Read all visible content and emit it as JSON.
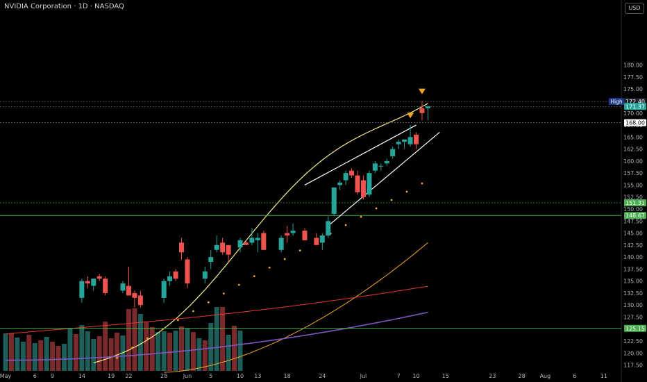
{
  "header": {
    "title": "NVIDIA Corporation · 1D · NASDAQ",
    "currency": "USD"
  },
  "chart_data": {
    "type": "candlestick",
    "ylim": [
      116,
      184
    ],
    "y_ticks": [
      117.5,
      120.0,
      122.5,
      125.0,
      127.5,
      130.0,
      132.5,
      135.0,
      137.5,
      140.0,
      142.5,
      145.0,
      147.5,
      150.0,
      152.5,
      155.0,
      157.5,
      160.0,
      162.5,
      165.0,
      167.5,
      170.0,
      172.5,
      175.0,
      177.5,
      180.0
    ],
    "x_ticks": [
      {
        "label": "May",
        "day": 1
      },
      {
        "label": "6",
        "day": 6
      },
      {
        "label": "9",
        "day": 9
      },
      {
        "label": "14",
        "day": 14
      },
      {
        "label": "19",
        "day": 19
      },
      {
        "label": "22",
        "day": 22
      },
      {
        "label": "28",
        "day": 28
      },
      {
        "label": "Jun",
        "day": 32
      },
      {
        "label": "5",
        "day": 36
      },
      {
        "label": "10",
        "day": 41
      },
      {
        "label": "13",
        "day": 44
      },
      {
        "label": "18",
        "day": 49
      },
      {
        "label": "24",
        "day": 55
      },
      {
        "label": "Jul",
        "day": 62
      },
      {
        "label": "7",
        "day": 68
      },
      {
        "label": "10",
        "day": 71
      },
      {
        "label": "15",
        "day": 76
      },
      {
        "label": "23",
        "day": 84
      },
      {
        "label": "28",
        "day": 89
      },
      {
        "label": "Aug",
        "day": 93
      },
      {
        "label": "6",
        "day": 98
      },
      {
        "label": "11",
        "day": 103
      }
    ],
    "candles": [
      {
        "day": 14,
        "o": 131.5,
        "h": 135.5,
        "l": 130.5,
        "c": 135.0
      },
      {
        "day": 15,
        "o": 135.0,
        "h": 136.0,
        "l": 133.5,
        "c": 134.5
      },
      {
        "day": 16,
        "o": 134.0,
        "h": 135.5,
        "l": 133.0,
        "c": 135.5
      },
      {
        "day": 17,
        "o": 136.0,
        "h": 136.5,
        "l": 135.0,
        "c": 135.5
      },
      {
        "day": 18,
        "o": 135.5,
        "h": 136.0,
        "l": 132.0,
        "c": 132.5
      },
      {
        "day": 21,
        "o": 133.0,
        "h": 135.0,
        "l": 132.5,
        "c": 134.5
      },
      {
        "day": 22,
        "o": 134.0,
        "h": 138.0,
        "l": 132.0,
        "c": 132.0
      },
      {
        "day": 23,
        "o": 132.5,
        "h": 133.0,
        "l": 129.5,
        "c": 131.5
      },
      {
        "day": 24,
        "o": 132.0,
        "h": 133.0,
        "l": 129.5,
        "c": 130.0
      },
      {
        "day": 28,
        "o": 131.5,
        "h": 135.5,
        "l": 130.5,
        "c": 135.0
      },
      {
        "day": 29,
        "o": 135.0,
        "h": 137.0,
        "l": 134.0,
        "c": 136.0
      },
      {
        "day": 30,
        "o": 137.0,
        "h": 137.5,
        "l": 135.0,
        "c": 135.5
      },
      {
        "day": 31,
        "o": 143.0,
        "h": 144.0,
        "l": 139.5,
        "c": 141.0
      },
      {
        "day": 32,
        "o": 139.5,
        "h": 140.0,
        "l": 133.5,
        "c": 134.5
      },
      {
        "day": 35,
        "o": 135.5,
        "h": 138.0,
        "l": 134.5,
        "c": 137.0
      },
      {
        "day": 36,
        "o": 139.0,
        "h": 141.5,
        "l": 137.5,
        "c": 140.0
      },
      {
        "day": 37,
        "o": 141.5,
        "h": 144.5,
        "l": 141.0,
        "c": 142.5
      },
      {
        "day": 38,
        "o": 143.0,
        "h": 144.0,
        "l": 140.5,
        "c": 141.0
      },
      {
        "day": 39,
        "o": 142.5,
        "h": 142.5,
        "l": 139.0,
        "c": 140.5
      },
      {
        "day": 41,
        "o": 142.0,
        "h": 144.0,
        "l": 141.0,
        "c": 143.5
      },
      {
        "day": 42,
        "o": 143.0,
        "h": 143.5,
        "l": 142.5,
        "c": 142.5
      },
      {
        "day": 43,
        "o": 143.0,
        "h": 146.0,
        "l": 142.5,
        "c": 144.0
      },
      {
        "day": 44,
        "o": 143.5,
        "h": 145.0,
        "l": 141.0,
        "c": 144.0
      },
      {
        "day": 45,
        "o": 145.0,
        "h": 145.5,
        "l": 141.5,
        "c": 141.5
      },
      {
        "day": 48,
        "o": 141.5,
        "h": 144.5,
        "l": 141.0,
        "c": 144.0
      },
      {
        "day": 49,
        "o": 145.0,
        "h": 146.5,
        "l": 143.0,
        "c": 144.5
      },
      {
        "day": 50,
        "o": 145.0,
        "h": 147.0,
        "l": 144.5,
        "c": 145.5
      },
      {
        "day": 52,
        "o": 145.5,
        "h": 146.0,
        "l": 143.5,
        "c": 143.5
      },
      {
        "day": 54,
        "o": 144.0,
        "h": 145.0,
        "l": 142.5,
        "c": 142.5
      },
      {
        "day": 55,
        "o": 143.0,
        "h": 145.0,
        "l": 141.5,
        "c": 144.5
      },
      {
        "day": 56,
        "o": 144.5,
        "h": 148.5,
        "l": 144.0,
        "c": 147.5
      },
      {
        "day": 57,
        "o": 149.0,
        "h": 154.5,
        "l": 148.5,
        "c": 154.5
      },
      {
        "day": 58,
        "o": 155.0,
        "h": 156.0,
        "l": 154.0,
        "c": 155.5
      },
      {
        "day": 59,
        "o": 156.0,
        "h": 158.0,
        "l": 155.0,
        "c": 157.5
      },
      {
        "day": 60,
        "o": 158.0,
        "h": 158.5,
        "l": 156.5,
        "c": 157.0
      },
      {
        "day": 61,
        "o": 157.0,
        "h": 158.0,
        "l": 153.0,
        "c": 153.5
      },
      {
        "day": 62,
        "o": 156.0,
        "h": 157.0,
        "l": 152.0,
        "c": 152.5
      },
      {
        "day": 63,
        "o": 153.0,
        "h": 158.0,
        "l": 152.5,
        "c": 157.5
      },
      {
        "day": 64,
        "o": 158.0,
        "h": 160.0,
        "l": 157.5,
        "c": 159.5
      },
      {
        "day": 65,
        "o": 159.0,
        "h": 159.5,
        "l": 158.0,
        "c": 159.0
      },
      {
        "day": 66,
        "o": 159.5,
        "h": 160.5,
        "l": 159.0,
        "c": 160.0
      },
      {
        "day": 67,
        "o": 161.0,
        "h": 163.0,
        "l": 160.5,
        "c": 162.5
      },
      {
        "day": 68,
        "o": 163.5,
        "h": 164.5,
        "l": 162.5,
        "c": 164.0
      },
      {
        "day": 69,
        "o": 164.0,
        "h": 164.5,
        "l": 162.5,
        "c": 164.5
      },
      {
        "day": 70,
        "o": 163.5,
        "h": 167.5,
        "l": 163.0,
        "c": 165.0
      },
      {
        "day": 71,
        "o": 165.5,
        "h": 166.0,
        "l": 162.5,
        "c": 163.5
      },
      {
        "day": 72,
        "o": 171.0,
        "h": 172.5,
        "l": 168.5,
        "c": 170.0
      },
      {
        "day": 73,
        "o": 171.0,
        "h": 171.5,
        "l": 168.5,
        "c": 171.4
      }
    ],
    "volume": [
      {
        "day": 1,
        "v": 54,
        "dir": "up"
      },
      {
        "day": 2,
        "v": 54,
        "dir": "down"
      },
      {
        "day": 3,
        "v": 48,
        "dir": "up"
      },
      {
        "day": 4,
        "v": 42,
        "dir": "up"
      },
      {
        "day": 5,
        "v": 52,
        "dir": "down"
      },
      {
        "day": 6,
        "v": 40,
        "dir": "up"
      },
      {
        "day": 7,
        "v": 44,
        "dir": "down"
      },
      {
        "day": 8,
        "v": 49,
        "dir": "up"
      },
      {
        "day": 9,
        "v": 42,
        "dir": "down"
      },
      {
        "day": 10,
        "v": 36,
        "dir": "down"
      },
      {
        "day": 11,
        "v": 39,
        "dir": "up"
      },
      {
        "day": 12,
        "v": 62,
        "dir": "up"
      },
      {
        "day": 13,
        "v": 53,
        "dir": "down"
      },
      {
        "day": 14,
        "v": 66,
        "dir": "up"
      },
      {
        "day": 15,
        "v": 57,
        "dir": "up"
      },
      {
        "day": 16,
        "v": 46,
        "dir": "up"
      },
      {
        "day": 17,
        "v": 50,
        "dir": "down"
      },
      {
        "day": 18,
        "v": 71,
        "dir": "down"
      },
      {
        "day": 19,
        "v": 47,
        "dir": "down"
      },
      {
        "day": 20,
        "v": 55,
        "dir": "down"
      },
      {
        "day": 21,
        "v": 51,
        "dir": "up"
      },
      {
        "day": 22,
        "v": 89,
        "dir": "down"
      },
      {
        "day": 23,
        "v": 90,
        "dir": "down"
      },
      {
        "day": 24,
        "v": 82,
        "dir": "up"
      },
      {
        "day": 25,
        "v": 70,
        "dir": "down"
      },
      {
        "day": 26,
        "v": 63,
        "dir": "down"
      },
      {
        "day": 27,
        "v": 56,
        "dir": "up"
      },
      {
        "day": 28,
        "v": 57,
        "dir": "up"
      },
      {
        "day": 29,
        "v": 55,
        "dir": "down"
      },
      {
        "day": 30,
        "v": 58,
        "dir": "up"
      },
      {
        "day": 31,
        "v": 64,
        "dir": "down"
      },
      {
        "day": 32,
        "v": 61,
        "dir": "up"
      },
      {
        "day": 33,
        "v": 56,
        "dir": "down"
      },
      {
        "day": 34,
        "v": 47,
        "dir": "up"
      },
      {
        "day": 35,
        "v": 44,
        "dir": "down"
      },
      {
        "day": 36,
        "v": 69,
        "dir": "up"
      },
      {
        "day": 37,
        "v": 92,
        "dir": "up"
      },
      {
        "day": 38,
        "v": 92,
        "dir": "down"
      },
      {
        "day": 39,
        "v": 52,
        "dir": "up"
      },
      {
        "day": 40,
        "v": 65,
        "dir": "down"
      },
      {
        "day": 41,
        "v": 58,
        "dir": "up"
      }
    ],
    "horizontal_levels": [
      {
        "price": 172.4,
        "label": "172.40",
        "tag": "High"
      },
      {
        "price": 171.37,
        "label": "171.37"
      },
      {
        "price": 168.0,
        "label": "168.00"
      },
      {
        "price": 151.31,
        "label": "151.31"
      },
      {
        "price": 148.67,
        "label": "148.67"
      },
      {
        "price": 125.15,
        "label": "125.15"
      }
    ],
    "colors": {
      "up": "#26a69a",
      "down": "#ef5350",
      "ma_fast": "#f7f08c",
      "ma_mid": "#f5a623",
      "ma_slow": "#e53935",
      "ma_long": "#7e57c2",
      "level": "#4caf50",
      "signal": "#f5a623"
    }
  }
}
